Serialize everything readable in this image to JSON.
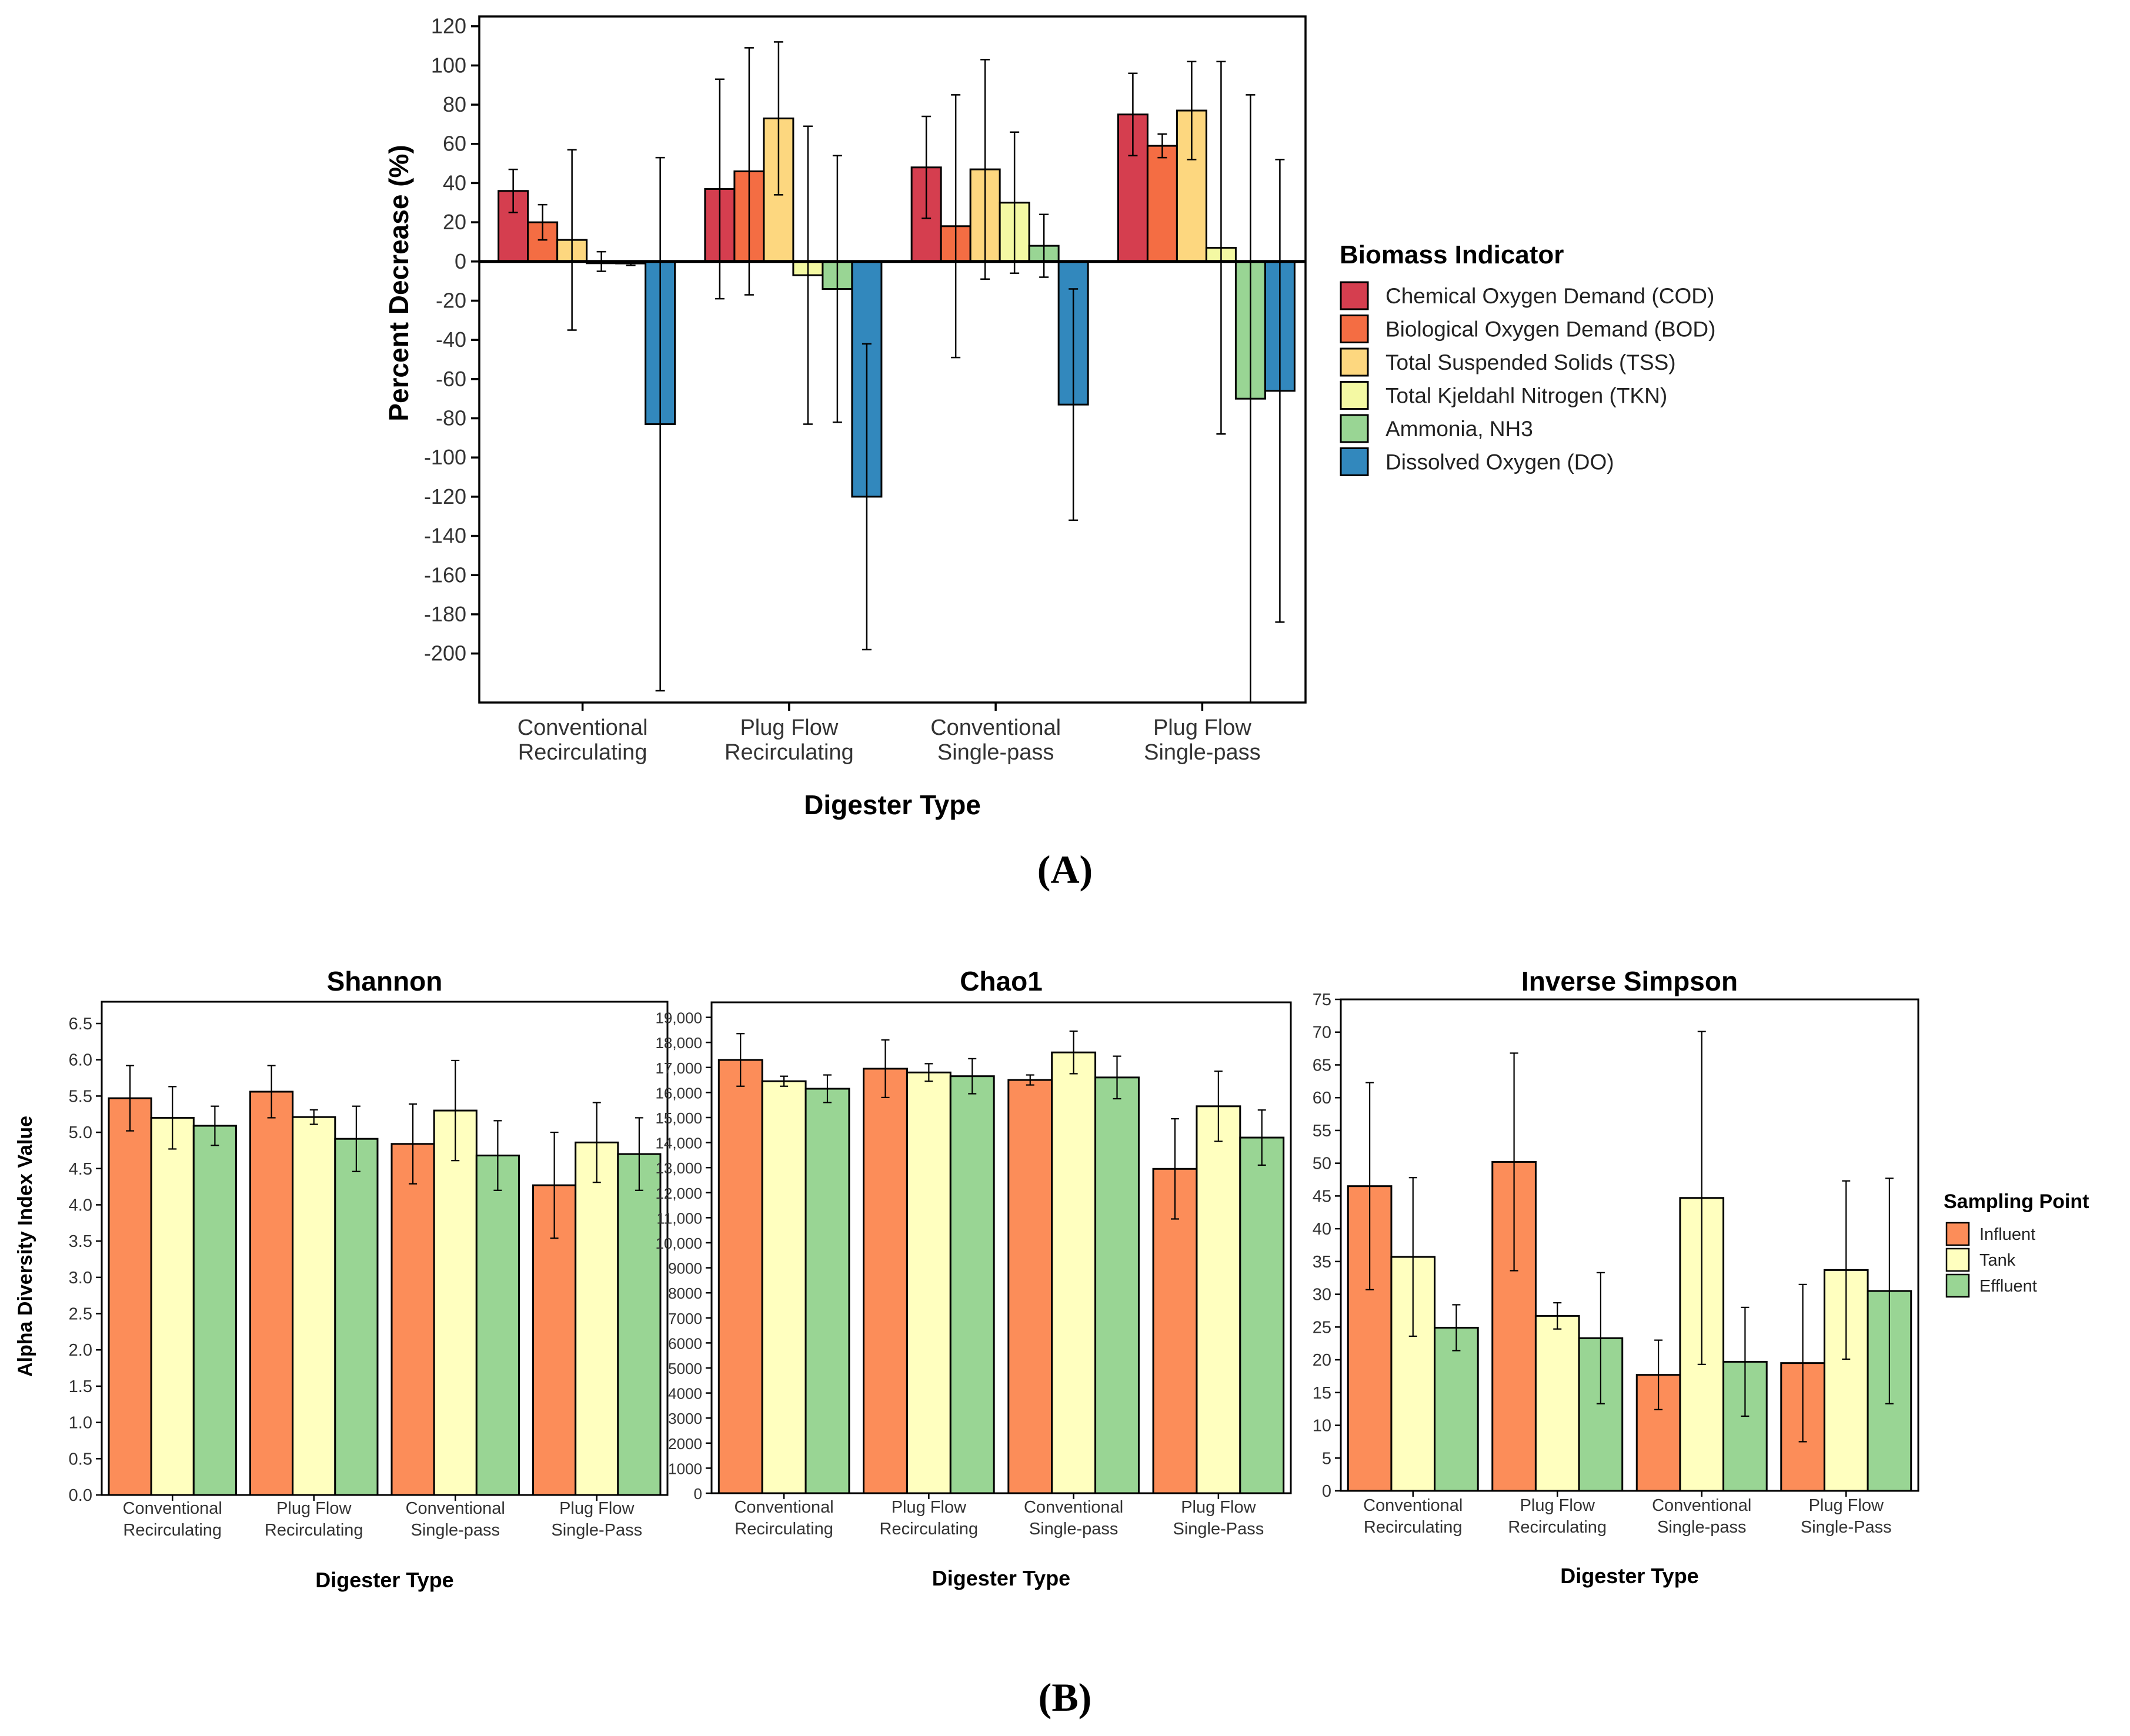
{
  "colors": {
    "COD": "#d53e4f",
    "BOD": "#f46d43",
    "TSS": "#fdd77f",
    "TKN": "#f4f9a3",
    "NH3": "#99d594",
    "DO": "#3288bd",
    "Influent": "#fc8d59",
    "Tank": "#ffffbf",
    "Effluent": "#99d594"
  },
  "panelA": {
    "caption": "(A)",
    "chart_data": {
      "type": "bar",
      "title": "",
      "xlabel": "Digester Type",
      "ylabel": "Percent Decrease (%)",
      "ylim": [
        -225,
        125
      ],
      "yticks": [
        120,
        100,
        80,
        60,
        40,
        20,
        0,
        -20,
        -40,
        -60,
        -80,
        -100,
        -120,
        -140,
        -160,
        -180,
        -200
      ],
      "ytick_labels": [
        "120",
        "100",
        "80",
        "60",
        "40",
        "20",
        "0",
        "-20",
        "-40",
        "-60",
        "-80",
        "-100",
        "-120",
        "-140",
        "-160",
        "-180",
        "-200"
      ],
      "categories": [
        {
          "line1": "Conventional",
          "line2": "Recirculating"
        },
        {
          "line1": "Plug Flow",
          "line2": "Recirculating"
        },
        {
          "line1": "Conventional",
          "line2": "Single-pass"
        },
        {
          "line1": "Plug Flow",
          "line2": "Single-pass"
        }
      ],
      "legend_title": "Biomass Indicator",
      "series": [
        {
          "key": "COD",
          "name": "Chemical Oxygen Demand (COD)",
          "values": [
            36,
            37,
            48,
            75
          ],
          "err": [
            11,
            56,
            26,
            21
          ]
        },
        {
          "key": "BOD",
          "name": "Biological Oxygen Demand (BOD)",
          "values": [
            20,
            46,
            18,
            59
          ],
          "err": [
            9,
            63,
            67,
            6
          ]
        },
        {
          "key": "TSS",
          "name": "Total Suspended Solids (TSS)",
          "values": [
            11,
            73,
            47,
            77
          ],
          "err": [
            46,
            39,
            56,
            25
          ]
        },
        {
          "key": "TKN",
          "name": "Total Kjeldahl Nitrogen (TKN)",
          "values": [
            0,
            -7,
            30,
            7
          ],
          "err": [
            5,
            76,
            36,
            95
          ]
        },
        {
          "key": "NH3",
          "name": "Ammonia, NH3",
          "values": [
            -1,
            -14,
            8,
            -70
          ],
          "err": [
            1,
            68,
            16,
            155
          ]
        },
        {
          "key": "DO",
          "name": "Dissolved Oxygen (DO)",
          "values": [
            -83,
            -120,
            -73,
            -66
          ],
          "err": [
            136,
            78,
            59,
            118
          ]
        }
      ]
    }
  },
  "panelB": {
    "caption": "(B)",
    "ylabel": "Alpha Diversity Index Value",
    "legend_title": "Sampling Point",
    "legend_items": [
      "Influent",
      "Tank",
      "Effluent"
    ],
    "chart_data": [
      {
        "type": "bar",
        "title": "Shannon",
        "xlabel": "Digester Type",
        "ylim": [
          0,
          6.8
        ],
        "yticks": [
          0,
          0.5,
          1,
          1.5,
          2,
          2.5,
          3,
          3.5,
          4,
          4.5,
          5,
          5.5,
          6,
          6.5
        ],
        "ytick_labels": [
          "0.0",
          "0.5",
          "1.0",
          "1.5",
          "2.0",
          "2.5",
          "3.0",
          "3.5",
          "4.0",
          "4.5",
          "5.0",
          "5.5",
          "6.0",
          "6.5"
        ],
        "categories": [
          {
            "line1": "Conventional",
            "line2": "Recirculating"
          },
          {
            "line1": "Plug Flow",
            "line2": "Recirculating"
          },
          {
            "line1": "Conventional",
            "line2": "Single-pass"
          },
          {
            "line1": "Plug Flow",
            "line2": "Single-Pass"
          }
        ],
        "series": [
          {
            "name": "Influent",
            "values": [
              5.47,
              5.56,
              4.84,
              4.27
            ],
            "err": [
              0.45,
              0.36,
              0.55,
              0.73
            ]
          },
          {
            "name": "Tank",
            "values": [
              5.2,
              5.21,
              5.3,
              4.86
            ],
            "err": [
              0.43,
              0.1,
              0.69,
              0.55
            ]
          },
          {
            "name": "Effluent",
            "values": [
              5.09,
              4.91,
              4.68,
              4.7
            ],
            "err": [
              0.27,
              0.45,
              0.48,
              0.5
            ]
          }
        ]
      },
      {
        "type": "bar",
        "title": "Chao1",
        "xlabel": "Digester Type",
        "ylim": [
          0,
          19600
        ],
        "yticks": [
          0,
          1000,
          2000,
          3000,
          4000,
          5000,
          6000,
          7000,
          8000,
          9000,
          10000,
          11000,
          12000,
          13000,
          14000,
          15000,
          16000,
          17000,
          18000,
          19000
        ],
        "ytick_labels": [
          "0",
          "1000",
          "2000",
          "3000",
          "4000",
          "5000",
          "6000",
          "7000",
          "8000",
          "9000",
          "10,000",
          "11,000",
          "12,000",
          "13,000",
          "14,000",
          "15,000",
          "16,000",
          "17,000",
          "18,000",
          "19,000"
        ],
        "categories": [
          {
            "line1": "Conventional",
            "line2": "Recirculating"
          },
          {
            "line1": "Plug Flow",
            "line2": "Recirculating"
          },
          {
            "line1": "Conventional",
            "line2": "Single-pass"
          },
          {
            "line1": "Plug Flow",
            "line2": "Single-Pass"
          }
        ],
        "series": [
          {
            "name": "Influent",
            "values": [
              17300,
              16950,
              16500,
              12950
            ],
            "err": [
              1050,
              1150,
              200,
              2000
            ]
          },
          {
            "name": "Tank",
            "values": [
              16450,
              16800,
              17600,
              15450
            ],
            "err": [
              200,
              350,
              850,
              1400
            ]
          },
          {
            "name": "Effluent",
            "values": [
              16150,
              16650,
              16600,
              14200
            ],
            "err": [
              550,
              700,
              850,
              1100
            ]
          }
        ]
      },
      {
        "type": "bar",
        "title": "Inverse Simpson",
        "xlabel": "Digester Type",
        "ylim": [
          0,
          75
        ],
        "yticks": [
          0,
          5,
          10,
          15,
          20,
          25,
          30,
          35,
          40,
          45,
          50,
          55,
          60,
          65,
          70,
          75
        ],
        "ytick_labels": [
          "0",
          "5",
          "10",
          "15",
          "20",
          "25",
          "30",
          "35",
          "40",
          "45",
          "50",
          "55",
          "60",
          "65",
          "70",
          "75"
        ],
        "categories": [
          {
            "line1": "Conventional",
            "line2": "Recirculating"
          },
          {
            "line1": "Plug Flow",
            "line2": "Recirculating"
          },
          {
            "line1": "Conventional",
            "line2": "Single-pass"
          },
          {
            "line1": "Plug Flow",
            "line2": "Single-Pass"
          }
        ],
        "series": [
          {
            "name": "Influent",
            "values": [
              46.5,
              50.2,
              17.7,
              19.5
            ],
            "err": [
              15.8,
              16.6,
              5.3,
              12
            ]
          },
          {
            "name": "Tank",
            "values": [
              35.7,
              26.7,
              44.7,
              33.7
            ],
            "err": [
              12.1,
              2,
              25.4,
              13.6
            ]
          },
          {
            "name": "Effluent",
            "values": [
              24.9,
              23.3,
              19.7,
              30.5
            ],
            "err": [
              3.5,
              10,
              8.3,
              17.2
            ]
          }
        ]
      }
    ]
  }
}
